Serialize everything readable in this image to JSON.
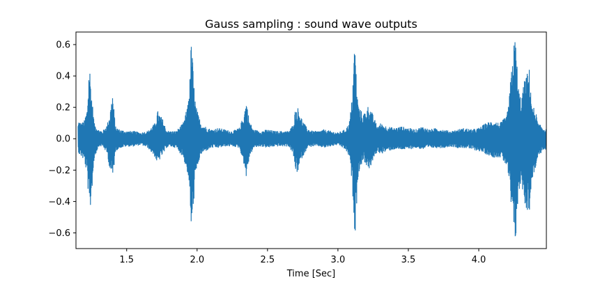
{
  "chart_data": {
    "type": "line",
    "title": "Gauss sampling : sound wave outputs",
    "xlabel": "Time [Sec]",
    "ylabel": "",
    "xlim": [
      1.14,
      4.48
    ],
    "ylim": [
      -0.7,
      0.68
    ],
    "xticks": [
      1.5,
      2.0,
      2.5,
      3.0,
      3.5,
      4.0
    ],
    "xtick_labels": [
      "1.5",
      "2.0",
      "2.5",
      "3.0",
      "3.5",
      "4.0"
    ],
    "yticks": [
      0.6,
      0.4,
      0.2,
      0.0,
      -0.2,
      -0.4,
      -0.6
    ],
    "ytick_labels": [
      "0.6",
      "0.4",
      "0.2",
      "0.0",
      "−0.2",
      "−0.4",
      "−0.6"
    ],
    "grid": false,
    "color": "#1f77b4",
    "series": [
      {
        "values_note_free": true,
        "x": [
          1.15,
          1.16,
          1.18,
          1.2,
          1.22,
          1.235,
          1.25,
          1.27,
          1.3,
          1.33,
          1.36,
          1.38,
          1.4,
          1.42,
          1.45,
          1.5,
          1.55,
          1.6,
          1.65,
          1.7,
          1.72,
          1.74,
          1.76,
          1.78,
          1.8,
          1.85,
          1.9,
          1.93,
          1.95,
          1.96,
          1.975,
          1.99,
          2.01,
          2.03,
          2.06,
          2.1,
          2.15,
          2.2,
          2.25,
          2.3,
          2.33,
          2.35,
          2.37,
          2.4,
          2.45,
          2.5,
          2.55,
          2.6,
          2.65,
          2.68,
          2.7,
          2.72,
          2.74,
          2.76,
          2.78,
          2.82,
          2.86,
          2.9,
          2.95,
          3.0,
          3.05,
          3.08,
          3.1,
          3.12,
          3.135,
          3.15,
          3.18,
          3.22,
          3.25,
          3.28,
          3.3,
          3.35,
          3.4,
          3.45,
          3.5,
          3.55,
          3.6,
          3.65,
          3.7,
          3.75,
          3.8,
          3.85,
          3.9,
          3.95,
          4.0,
          4.05,
          4.1,
          4.15,
          4.2,
          4.22,
          4.24,
          4.26,
          4.28,
          4.3,
          4.33,
          4.36,
          4.38,
          4.4,
          4.42,
          4.45,
          4.48
        ],
        "upper": [
          0.07,
          0.12,
          0.1,
          0.12,
          0.2,
          0.51,
          0.3,
          0.1,
          0.06,
          0.05,
          0.09,
          0.16,
          0.3,
          0.08,
          0.06,
          0.05,
          0.05,
          0.04,
          0.05,
          0.1,
          0.18,
          0.15,
          0.12,
          0.06,
          0.05,
          0.05,
          0.1,
          0.2,
          0.4,
          0.68,
          0.38,
          0.22,
          0.15,
          0.1,
          0.08,
          0.06,
          0.07,
          0.06,
          0.05,
          0.07,
          0.15,
          0.25,
          0.12,
          0.06,
          0.05,
          0.06,
          0.05,
          0.05,
          0.05,
          0.09,
          0.2,
          0.2,
          0.14,
          0.1,
          0.07,
          0.05,
          0.05,
          0.06,
          0.05,
          0.04,
          0.06,
          0.1,
          0.26,
          0.65,
          0.3,
          0.2,
          0.16,
          0.22,
          0.15,
          0.08,
          0.1,
          0.08,
          0.07,
          0.08,
          0.07,
          0.06,
          0.08,
          0.06,
          0.07,
          0.06,
          0.05,
          0.06,
          0.07,
          0.06,
          0.07,
          0.1,
          0.12,
          0.1,
          0.15,
          0.3,
          0.55,
          0.67,
          0.35,
          0.25,
          0.4,
          0.45,
          0.2,
          0.2,
          0.1,
          0.08,
          0.06
        ],
        "lower": [
          -0.06,
          -0.1,
          -0.12,
          -0.15,
          -0.25,
          -0.53,
          -0.35,
          -0.12,
          -0.05,
          -0.05,
          -0.1,
          -0.2,
          -0.26,
          -0.08,
          -0.06,
          -0.05,
          -0.05,
          -0.04,
          -0.06,
          -0.12,
          -0.17,
          -0.12,
          -0.1,
          -0.06,
          -0.05,
          -0.06,
          -0.12,
          -0.22,
          -0.42,
          -0.68,
          -0.4,
          -0.25,
          -0.15,
          -0.1,
          -0.08,
          -0.06,
          -0.06,
          -0.05,
          -0.05,
          -0.06,
          -0.16,
          -0.26,
          -0.12,
          -0.06,
          -0.05,
          -0.06,
          -0.05,
          -0.05,
          -0.05,
          -0.1,
          -0.22,
          -0.21,
          -0.13,
          -0.1,
          -0.06,
          -0.05,
          -0.05,
          -0.06,
          -0.05,
          -0.04,
          -0.07,
          -0.12,
          -0.3,
          -0.63,
          -0.35,
          -0.2,
          -0.14,
          -0.2,
          -0.14,
          -0.08,
          -0.1,
          -0.08,
          -0.07,
          -0.07,
          -0.07,
          -0.06,
          -0.07,
          -0.06,
          -0.06,
          -0.06,
          -0.05,
          -0.06,
          -0.06,
          -0.07,
          -0.08,
          -0.1,
          -0.12,
          -0.12,
          -0.18,
          -0.35,
          -0.6,
          -0.66,
          -0.38,
          -0.27,
          -0.45,
          -0.47,
          -0.25,
          -0.2,
          -0.12,
          -0.08,
          -0.07
        ]
      }
    ]
  }
}
